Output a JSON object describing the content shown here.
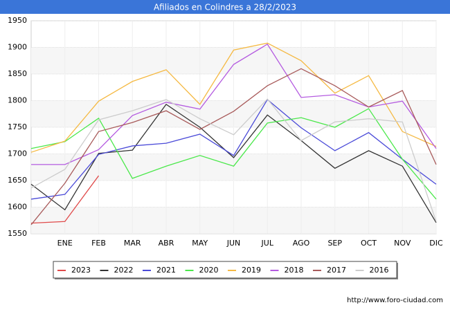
{
  "chart_data": {
    "type": "line",
    "title": "Afiliados en Colindres a 28/2/2023",
    "categories": [
      null,
      "ENE",
      "FEB",
      "MAR",
      "ABR",
      "MAY",
      "JUN",
      "JUL",
      "AGO",
      "SEP",
      "OCT",
      "NOV",
      "DIC"
    ],
    "series": [
      {
        "name": "2023",
        "color": "#e04a4a",
        "values": [
          1570,
          1573,
          1659,
          null,
          null,
          null,
          null,
          null,
          null,
          null,
          null,
          null,
          null
        ]
      },
      {
        "name": "2022",
        "color": "#333333",
        "values": [
          1643,
          1595,
          1701,
          1707,
          1793,
          1750,
          1693,
          1773,
          1725,
          1673,
          1706,
          1677,
          1571
        ]
      },
      {
        "name": "2021",
        "color": "#4a4ad8",
        "values": [
          1615,
          1624,
          1699,
          1715,
          1720,
          1737,
          1697,
          1802,
          1749,
          1706,
          1740,
          1690,
          1643
        ]
      },
      {
        "name": "2020",
        "color": "#4ae84a",
        "values": [
          1710,
          1723,
          1767,
          1654,
          1677,
          1697,
          1677,
          1758,
          1768,
          1750,
          1785,
          1690,
          1615
        ]
      },
      {
        "name": "2019",
        "color": "#f5b942",
        "values": [
          1703,
          1724,
          1799,
          1836,
          1858,
          1793,
          1895,
          1908,
          1875,
          1814,
          1847,
          1742,
          1714
        ]
      },
      {
        "name": "2018",
        "color": "#b45ae0",
        "values": [
          1680,
          1680,
          1708,
          1772,
          1797,
          1784,
          1868,
          1906,
          1806,
          1811,
          1788,
          1799,
          1710
        ]
      },
      {
        "name": "2017",
        "color": "#a85a5a",
        "values": [
          1567,
          1645,
          1742,
          1759,
          1781,
          1746,
          1780,
          1828,
          1860,
          1828,
          1788,
          1819,
          1680
        ]
      },
      {
        "name": "2016",
        "color": "#cccccc",
        "values": [
          1636,
          1671,
          1764,
          1781,
          1802,
          1766,
          1736,
          1803,
          1725,
          1760,
          1766,
          1760,
          1573
        ]
      }
    ],
    "ylim": [
      1550,
      1950
    ],
    "yticks": [
      1550,
      1600,
      1650,
      1700,
      1750,
      1800,
      1850,
      1900,
      1950
    ],
    "grid": true,
    "source": "http://www.foro-ciudad.com"
  }
}
